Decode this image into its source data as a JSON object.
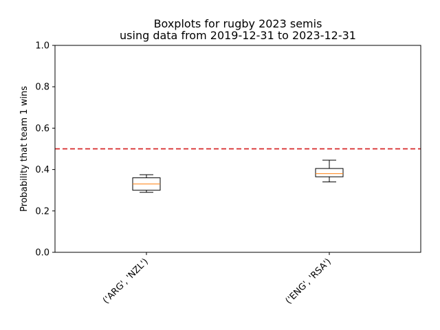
{
  "chart_data": {
    "type": "boxplot",
    "title_line1": "Boxplots for rugby 2023 semis",
    "title_line2": "using data from 2019-12-31 to 2023-12-31",
    "xlabel": "",
    "ylabel": "Probability that team 1 wins",
    "ylim": [
      0.0,
      1.0
    ],
    "yticks": [
      "0.0",
      "0.2",
      "0.4",
      "0.6",
      "0.8",
      "1.0"
    ],
    "grid": false,
    "reference_line": {
      "y": 0.5,
      "style": "dashed",
      "color": "#d62728"
    },
    "categories": [
      "('ARG', 'NZL')",
      "('ENG', 'RSA')"
    ],
    "boxes": [
      {
        "whisker_low": 0.29,
        "q1": 0.3,
        "median": 0.33,
        "q3": 0.36,
        "whisker_high": 0.375
      },
      {
        "whisker_low": 0.34,
        "q1": 0.365,
        "median": 0.38,
        "q3": 0.405,
        "whisker_high": 0.445
      }
    ],
    "colors": {
      "box": "#000000",
      "median": "#ff7f0e",
      "axes": "#000000"
    }
  }
}
